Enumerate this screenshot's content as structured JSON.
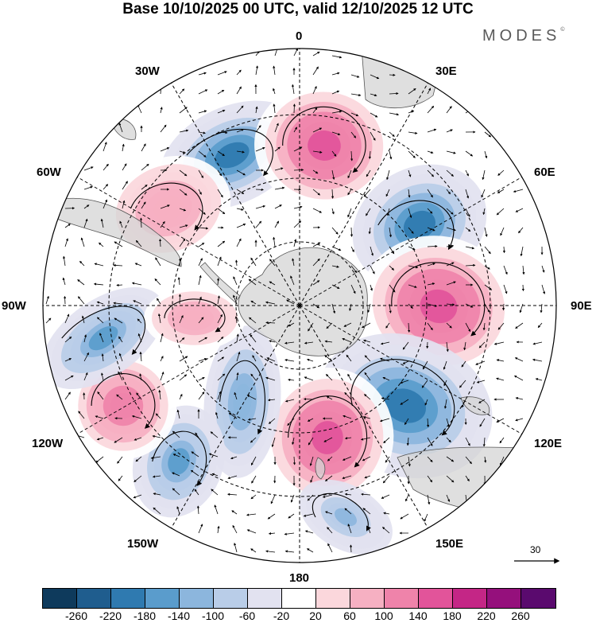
{
  "title": "Base 10/10/2025 00 UTC, valid 12/10/2025 12 UTC",
  "brand": {
    "name": "MODES",
    "mark": "©"
  },
  "longitude_labels": {
    "top": "0",
    "bottom": "180",
    "left": "90W",
    "right": "90E",
    "nw30": "30W",
    "ne30": "30E",
    "nw60": "60W",
    "ne60": "60E",
    "sw120": "120W",
    "se120": "120E",
    "sw150": "150W",
    "se150": "150E"
  },
  "vector_scale": {
    "value": "30"
  },
  "colorbar": {
    "colors": [
      "#0e3a5c",
      "#1f5d8e",
      "#2f7ab0",
      "#5a9ccc",
      "#8cb6dd",
      "#b9cde8",
      "#e2e2f0",
      "#ffffff",
      "#fbd7dc",
      "#f6b0c2",
      "#ef83aa",
      "#e2549a",
      "#c42686",
      "#95107c",
      "#5a0a6e"
    ],
    "labels": [
      "-260",
      "-220",
      "-180",
      "-140",
      "-100",
      "-60",
      "-20",
      "20",
      "60",
      "100",
      "140",
      "180",
      "220",
      "260"
    ]
  },
  "map_data": {
    "projection": "south-polar-stereographic",
    "field": "geopotential height anomaly",
    "anomaly_centers": [
      {
        "name": "neg-30w",
        "value": -200
      },
      {
        "name": "pos-0",
        "value": 160
      },
      {
        "name": "pos-60w",
        "value": 100
      },
      {
        "name": "neg-45e",
        "value": -180
      },
      {
        "name": "pos-90e",
        "value": 170
      },
      {
        "name": "neg-120e",
        "value": -200
      },
      {
        "name": "pos-170w",
        "value": 170
      },
      {
        "name": "neg-150w",
        "value": -130
      },
      {
        "name": "neg-130w",
        "value": -140
      },
      {
        "name": "pos-110w",
        "value": 130
      },
      {
        "name": "neg-95w",
        "value": -140
      },
      {
        "name": "pos-75w",
        "value": 90
      },
      {
        "name": "neg-160e",
        "value": -110
      }
    ]
  }
}
